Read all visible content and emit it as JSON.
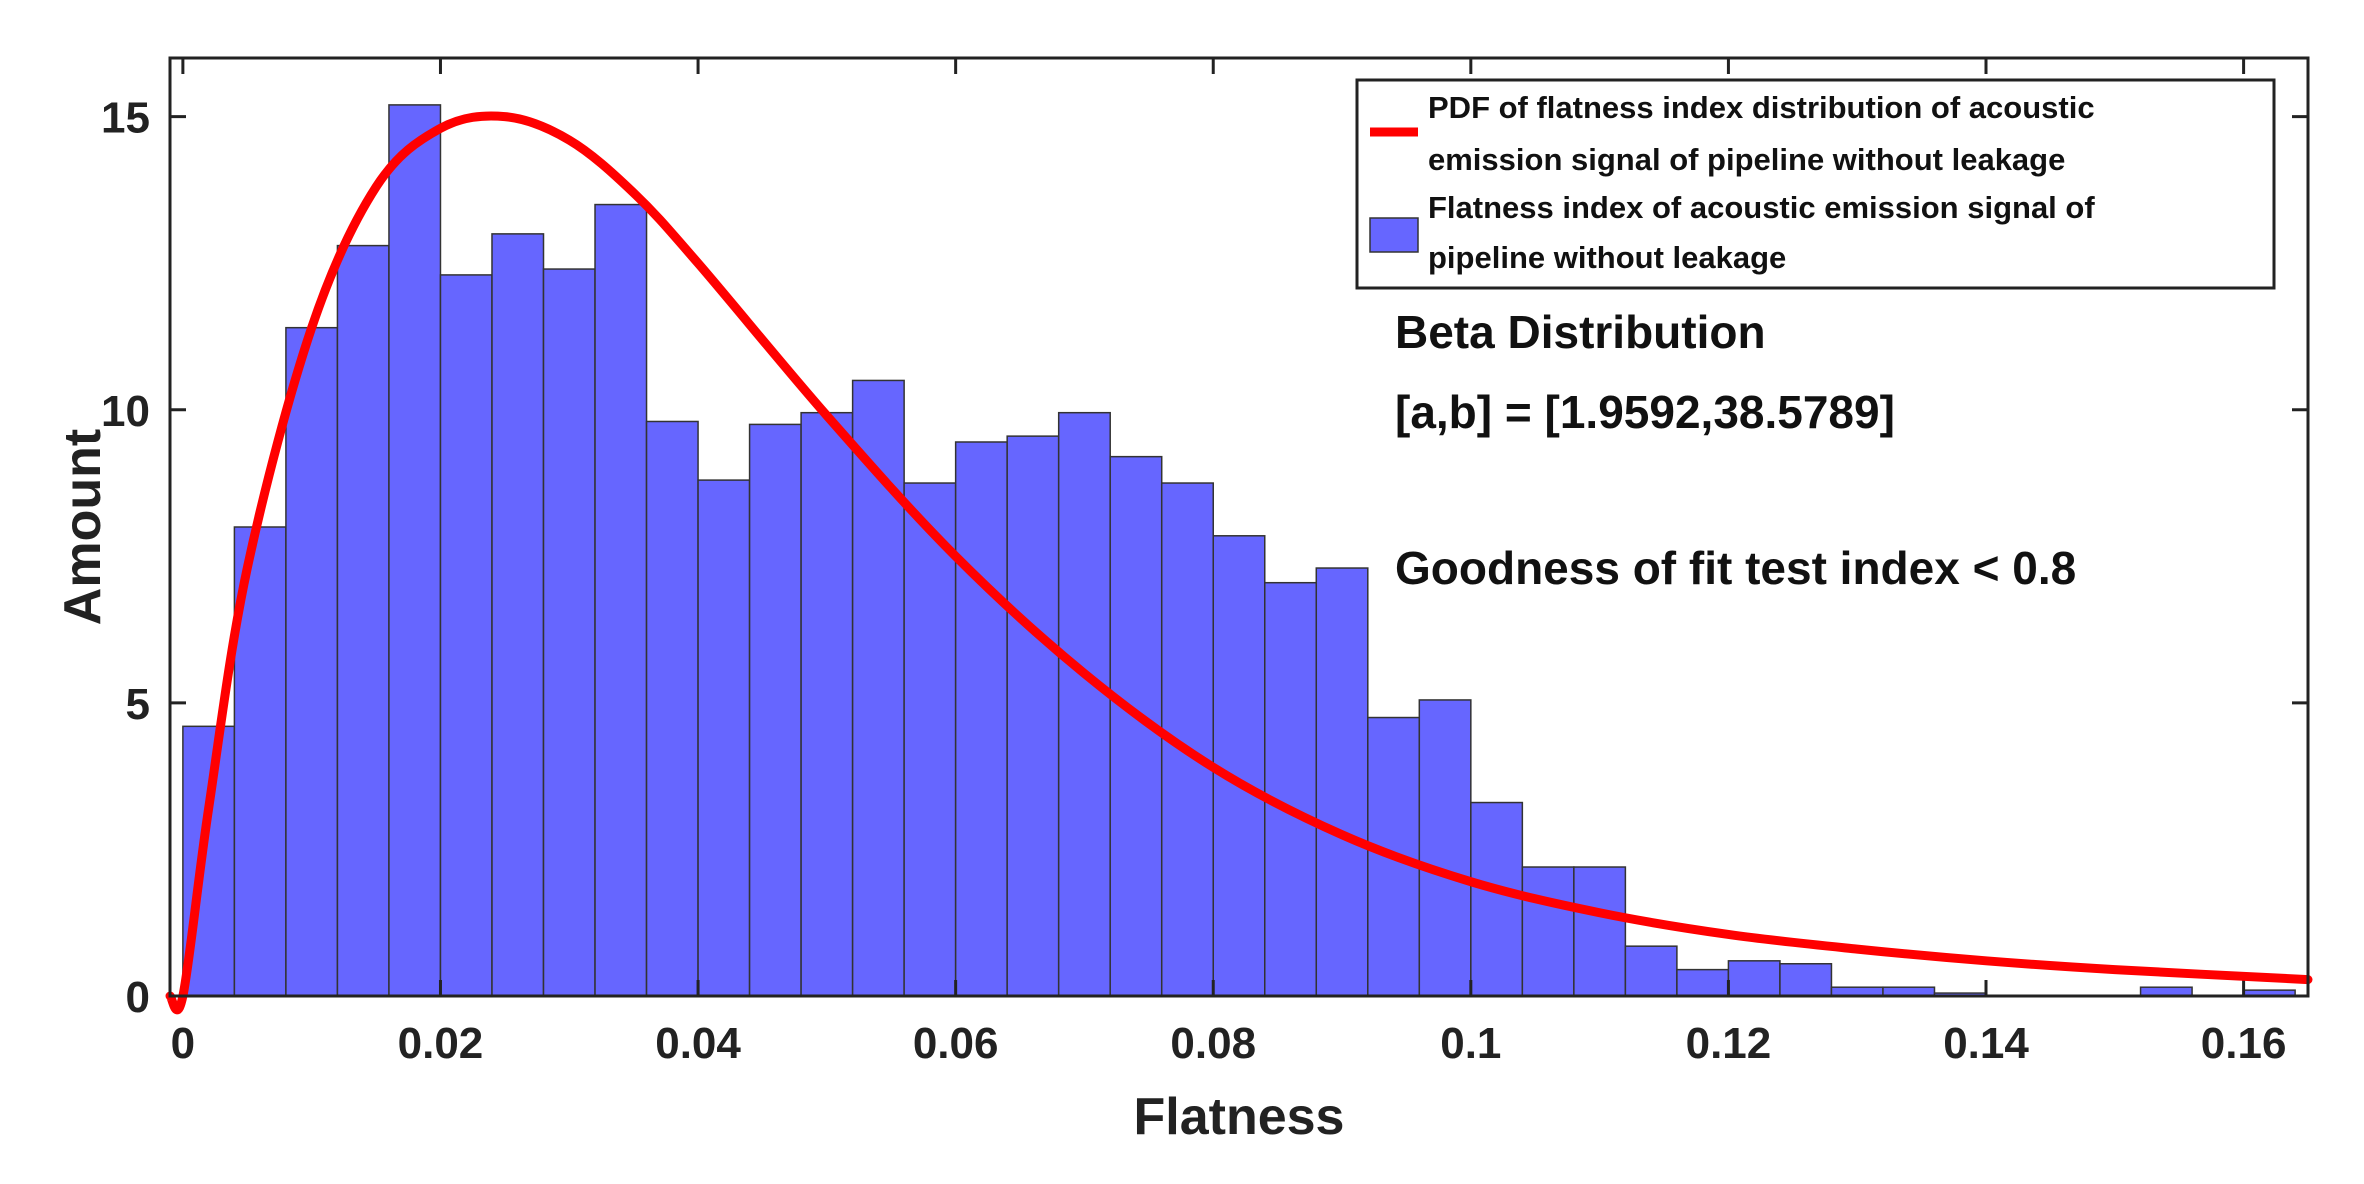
{
  "chart_data": {
    "type": "bar",
    "title": "",
    "xlabel": "Flatness",
    "ylabel": "Amount",
    "xlim": [
      -0.001,
      0.165
    ],
    "ylim": [
      0,
      16
    ],
    "xticks": [
      0,
      0.02,
      0.04,
      0.06,
      0.08,
      0.1,
      0.12,
      0.14,
      0.16
    ],
    "xtick_labels": [
      "0",
      "0.02",
      "0.04",
      "0.06",
      "0.08",
      "0.1",
      "0.12",
      "0.14",
      "0.16"
    ],
    "yticks": [
      0,
      5,
      10,
      15
    ],
    "ytick_labels": [
      "0",
      "5",
      "10",
      "15"
    ],
    "bin_width": 0.004,
    "bin_start": 0,
    "series": [
      {
        "name": "Flatness index of acoustic emission signal of pipeline without leakage",
        "kind": "histogram",
        "color": "#6666ff",
        "values": [
          4.6,
          8.0,
          11.4,
          12.8,
          15.2,
          12.3,
          13.0,
          12.4,
          13.5,
          9.8,
          8.8,
          9.75,
          9.95,
          10.5,
          8.75,
          9.45,
          9.55,
          9.95,
          9.2,
          8.75,
          7.85,
          7.05,
          7.3,
          4.75,
          5.05,
          3.3,
          2.2,
          2.2,
          0.85,
          0.45,
          0.6,
          0.55,
          0.15,
          0.15,
          0.05,
          0,
          0,
          0,
          0.15,
          0,
          0.1
        ]
      },
      {
        "name": "PDF of flatness index distribution of acoustic emission signal of pipeline without leakage",
        "kind": "line",
        "color": "#ff0000",
        "x": [
          -0.001,
          0,
          0.002,
          0.005,
          0.01,
          0.015,
          0.02,
          0.025,
          0.03,
          0.035,
          0.04,
          0.05,
          0.06,
          0.07,
          0.08,
          0.09,
          0.1,
          0.11,
          0.12,
          0.13,
          0.14,
          0.15,
          0.165
        ],
        "y": [
          0.0,
          0.0,
          3.2,
          7.3,
          11.4,
          13.8,
          14.8,
          15.0,
          14.6,
          13.7,
          12.5,
          9.9,
          7.5,
          5.5,
          3.9,
          2.75,
          1.95,
          1.42,
          1.05,
          0.8,
          0.6,
          0.45,
          0.28
        ]
      }
    ],
    "legend": {
      "position": "top-right",
      "entries": [
        {
          "label_lines": [
            "PDF of flatness index distribution of acoustic",
            "emission signal of pipeline without leakage"
          ],
          "marker": "line",
          "color": "#ff0000"
        },
        {
          "label_lines": [
            "Flatness index of acoustic emission signal of",
            "pipeline without leakage"
          ],
          "marker": "patch",
          "color": "#6666ff"
        }
      ]
    },
    "annotations": [
      "Beta Distribution",
      "[a,b] = [1.9592,38.5789]",
      "Goodness of fit test index < 0.8"
    ]
  }
}
